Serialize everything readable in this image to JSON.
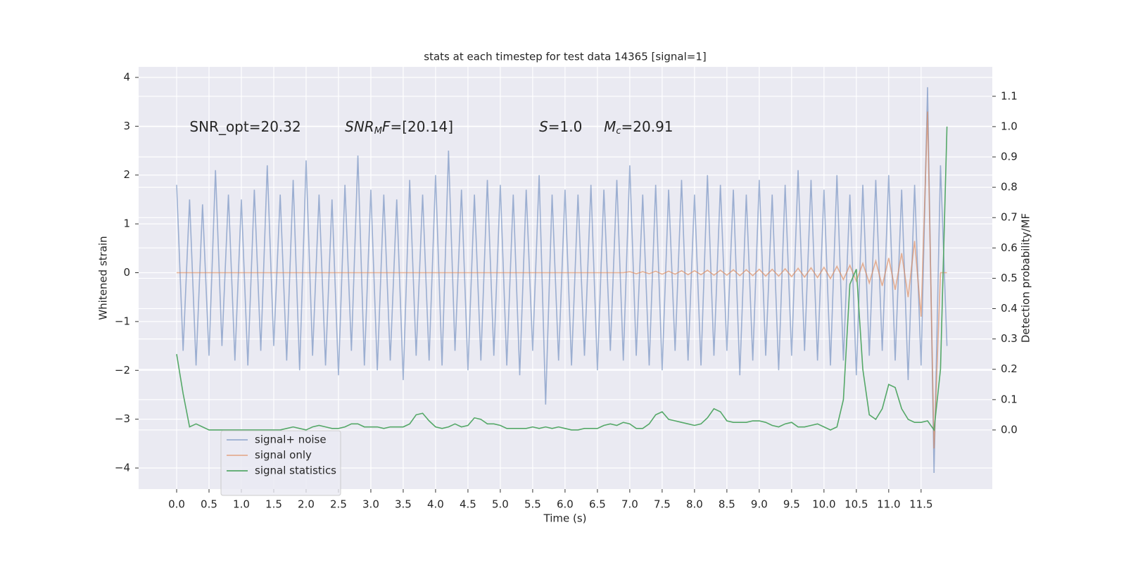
{
  "chart_data": {
    "type": "line",
    "title": "stats at each timestep for test data 14365 [signal=1]",
    "xlabel": "Time (s)",
    "ylabel": "Whitened strain",
    "y2label": "Detection probability/MF",
    "annotations": [
      {
        "parts": [
          {
            "text": "SNR_opt=20.32"
          }
        ]
      },
      {
        "parts": [
          {
            "text": "SNR",
            "italic": true
          },
          {
            "text": "M",
            "italic": true,
            "sub": true
          },
          {
            "text": "F",
            "italic": true
          },
          {
            "text": "=[20.14]"
          }
        ]
      },
      {
        "parts": [
          {
            "text": "S",
            "italic": true
          },
          {
            "text": "=1.0"
          }
        ]
      },
      {
        "parts": [
          {
            "text": "M",
            "italic": true
          },
          {
            "text": "c",
            "italic": true,
            "sub": true
          },
          {
            "text": "=20.91"
          }
        ]
      }
    ],
    "x": [
      0,
      0.1,
      0.2,
      0.3,
      0.4,
      0.5,
      0.6,
      0.7,
      0.8,
      0.9,
      1,
      1.1,
      1.2,
      1.3,
      1.4,
      1.5,
      1.6,
      1.7,
      1.8,
      1.9,
      2,
      2.1,
      2.2,
      2.3,
      2.4,
      2.5,
      2.6,
      2.7,
      2.8,
      2.9,
      3,
      3.1,
      3.2,
      3.3,
      3.4,
      3.5,
      3.6,
      3.7,
      3.8,
      3.9,
      4,
      4.1,
      4.2,
      4.3,
      4.4,
      4.5,
      4.6,
      4.7,
      4.8,
      4.9,
      5,
      5.1,
      5.2,
      5.3,
      5.4,
      5.5,
      5.6,
      5.7,
      5.8,
      5.9,
      6,
      6.1,
      6.2,
      6.3,
      6.4,
      6.5,
      6.6,
      6.7,
      6.8,
      6.9,
      7,
      7.1,
      7.2,
      7.3,
      7.4,
      7.5,
      7.6,
      7.7,
      7.8,
      7.9,
      8,
      8.1,
      8.2,
      8.3,
      8.4,
      8.5,
      8.6,
      8.7,
      8.8,
      8.9,
      9,
      9.1,
      9.2,
      9.3,
      9.4,
      9.5,
      9.6,
      9.7,
      9.8,
      9.9,
      10,
      10.1,
      10.2,
      10.3,
      10.4,
      10.5,
      10.6,
      10.7,
      10.8,
      10.9,
      11,
      11.1,
      11.2,
      11.3,
      11.4,
      11.5,
      11.6,
      11.7,
      11.8,
      11.9
    ],
    "series": [
      {
        "name": "signal+ noise",
        "color": "#4c72b0",
        "opacity": 0.5,
        "values": [
          1.8,
          -1.6,
          1.5,
          -1.9,
          1.4,
          -1.7,
          2.1,
          -1.5,
          1.6,
          -1.8,
          1.5,
          -1.9,
          1.7,
          -1.6,
          2.2,
          -1.5,
          1.6,
          -1.8,
          1.9,
          -2.0,
          2.3,
          -1.7,
          1.6,
          -1.9,
          1.5,
          -2.1,
          1.8,
          -1.6,
          2.4,
          -1.9,
          1.7,
          -2.0,
          1.6,
          -1.8,
          1.5,
          -2.2,
          1.9,
          -1.7,
          1.6,
          -1.8,
          2.0,
          -1.9,
          2.5,
          -1.6,
          1.7,
          -2.0,
          1.6,
          -1.8,
          1.9,
          -1.7,
          1.8,
          -1.9,
          1.6,
          -2.1,
          1.7,
          -1.6,
          2.0,
          -2.7,
          1.6,
          -1.8,
          1.7,
          -1.9,
          1.6,
          -1.7,
          1.8,
          -2.0,
          1.7,
          -1.6,
          1.9,
          -1.8,
          2.2,
          -1.7,
          1.6,
          -1.9,
          1.8,
          -2.0,
          1.7,
          -1.6,
          1.9,
          -1.8,
          1.6,
          -1.9,
          2.0,
          -1.7,
          1.8,
          -1.6,
          1.7,
          -2.1,
          1.6,
          -1.8,
          1.9,
          -1.7,
          1.6,
          -2.0,
          1.8,
          -1.7,
          2.1,
          -1.6,
          1.9,
          -1.8,
          1.7,
          -1.9,
          2.0,
          -1.8,
          1.6,
          -2.1,
          1.8,
          -1.7,
          1.9,
          -1.6,
          2.0,
          -1.8,
          1.7,
          -2.2,
          1.8,
          -1.9,
          3.8,
          -4.1,
          2.2,
          -1.5
        ]
      },
      {
        "name": "signal only",
        "color": "#dd8452",
        "opacity": 0.6,
        "values": [
          0,
          0,
          0,
          0,
          0,
          0,
          0,
          0,
          0,
          0,
          0,
          0,
          0,
          0,
          0,
          0,
          0,
          0,
          0,
          0,
          0,
          0,
          0,
          0,
          0,
          0,
          0,
          0,
          0,
          0,
          0,
          0,
          0,
          0,
          0,
          0,
          0,
          0,
          0,
          0,
          0,
          0,
          0,
          0,
          0,
          0,
          0,
          0,
          0,
          0,
          0,
          0,
          0,
          0,
          0,
          0,
          0,
          0,
          0,
          0,
          0,
          0,
          0,
          0,
          0,
          0,
          0,
          0,
          0,
          0,
          0.02,
          -0.02,
          0.02,
          -0.02,
          0.03,
          -0.03,
          0.03,
          -0.03,
          0.04,
          -0.04,
          0.04,
          -0.04,
          0.05,
          -0.05,
          0.05,
          -0.05,
          0.06,
          -0.06,
          0.06,
          -0.06,
          0.07,
          -0.07,
          0.07,
          -0.07,
          0.08,
          -0.08,
          0.09,
          -0.09,
          0.1,
          -0.1,
          0.11,
          -0.12,
          0.13,
          -0.14,
          0.15,
          -0.17,
          0.19,
          -0.21,
          0.24,
          -0.27,
          0.3,
          -0.35,
          0.4,
          -0.5,
          0.65,
          -0.9,
          3.3,
          -3.6,
          0,
          0
        ]
      },
      {
        "name": "signal statistics",
        "color": "#55a868",
        "opacity": 1,
        "axis": "y2",
        "values": [
          0.25,
          0.12,
          0.01,
          0.02,
          0.01,
          0,
          0,
          0,
          0,
          0,
          0,
          0,
          0,
          0,
          0,
          0,
          0,
          0.005,
          0.01,
          0.005,
          0,
          0.01,
          0.015,
          0.01,
          0.005,
          0.005,
          0.01,
          0.02,
          0.02,
          0.01,
          0.01,
          0.01,
          0.005,
          0.01,
          0.01,
          0.01,
          0.02,
          0.05,
          0.055,
          0.03,
          0.01,
          0.005,
          0.01,
          0.02,
          0.01,
          0.015,
          0.04,
          0.035,
          0.02,
          0.02,
          0.015,
          0.005,
          0.005,
          0.005,
          0.005,
          0.01,
          0.005,
          0.01,
          0.005,
          0.01,
          0.005,
          0,
          0,
          0.005,
          0.005,
          0.005,
          0.015,
          0.02,
          0.015,
          0.025,
          0.02,
          0.005,
          0.005,
          0.02,
          0.05,
          0.06,
          0.035,
          0.03,
          0.025,
          0.02,
          0.015,
          0.02,
          0.04,
          0.07,
          0.06,
          0.03,
          0.025,
          0.025,
          0.025,
          0.03,
          0.03,
          0.025,
          0.015,
          0.01,
          0.02,
          0.025,
          0.01,
          0.01,
          0.015,
          0.02,
          0.01,
          0,
          0.01,
          0.1,
          0.48,
          0.53,
          0.2,
          0.05,
          0.035,
          0.07,
          0.15,
          0.14,
          0.07,
          0.035,
          0.025,
          0.025,
          0.03,
          0,
          0.2,
          1.0
        ]
      }
    ],
    "xlim": [
      -0.587,
      12.6
    ],
    "ylim": [
      -4.432,
      4.216
    ],
    "y2lim": [
      -0.195,
      1.197
    ],
    "xticks": [
      {
        "value": 0,
        "label": "0.0"
      },
      {
        "value": 0.5,
        "label": "0.5"
      },
      {
        "value": 1,
        "label": "1.0"
      },
      {
        "value": 1.5,
        "label": "1.5"
      },
      {
        "value": 2,
        "label": "2.0"
      },
      {
        "value": 2.5,
        "label": "2.5"
      },
      {
        "value": 3,
        "label": "3.0"
      },
      {
        "value": 3.5,
        "label": "3.5"
      },
      {
        "value": 4,
        "label": "4.0"
      },
      {
        "value": 4.5,
        "label": "4.5"
      },
      {
        "value": 5,
        "label": "5.0"
      },
      {
        "value": 5.5,
        "label": "5.5"
      },
      {
        "value": 6,
        "label": "6.0"
      },
      {
        "value": 6.5,
        "label": "6.5"
      },
      {
        "value": 7,
        "label": "7.0"
      },
      {
        "value": 7.5,
        "label": "7.5"
      },
      {
        "value": 8,
        "label": "8.0"
      },
      {
        "value": 8.5,
        "label": "8.5"
      },
      {
        "value": 9,
        "label": "9.0"
      },
      {
        "value": 9.5,
        "label": "9.5"
      },
      {
        "value": 10,
        "label": "10.0"
      },
      {
        "value": 10.5,
        "label": "10.5"
      },
      {
        "value": 11,
        "label": "11.0"
      },
      {
        "value": 11.5,
        "label": "11.5"
      }
    ],
    "yticks": [
      {
        "value": -4,
        "label": "−4"
      },
      {
        "value": -3,
        "label": "−3"
      },
      {
        "value": -2,
        "label": "−2"
      },
      {
        "value": -1,
        "label": "−1"
      },
      0,
      1,
      2,
      3,
      4
    ],
    "y2ticks": [
      {
        "value": 0,
        "label": "0.0"
      },
      {
        "value": 0.1,
        "label": "0.1"
      },
      {
        "value": 0.2,
        "label": "0.2"
      },
      {
        "value": 0.3,
        "label": "0.3"
      },
      {
        "value": 0.4,
        "label": "0.4"
      },
      {
        "value": 0.5,
        "label": "0.5"
      },
      {
        "value": 0.6,
        "label": "0.6"
      },
      {
        "value": 0.7,
        "label": "0.7"
      },
      {
        "value": 0.8,
        "label": "0.8"
      },
      {
        "value": 0.9,
        "label": "0.9"
      },
      {
        "value": 1,
        "label": "1.0"
      },
      {
        "value": 1.1,
        "label": "1.1"
      }
    ],
    "grid": true,
    "legend": "lower left",
    "background": "#eaeaf2"
  }
}
